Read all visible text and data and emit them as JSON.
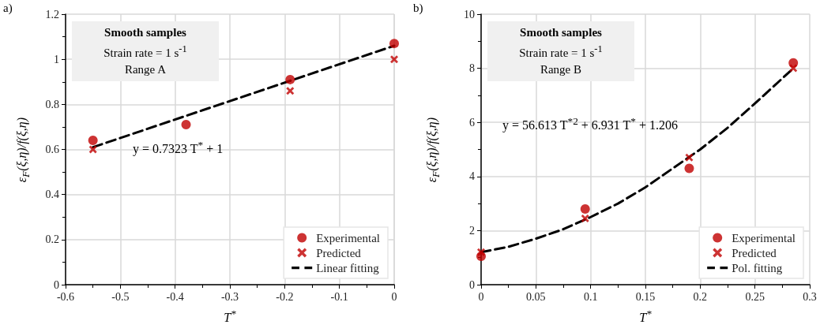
{
  "chart_data": [
    {
      "type": "scatter",
      "title": "a)",
      "xlabel": "T$^{*}$",
      "ylabel": "ε$_{F}$(ξ,η)/f(ξ,η)",
      "annotations": [
        "Smooth samples",
        "Strain rate = 1 s$^{-1}$",
        "Range A",
        "y = 0.7323 T$^{*}$ + 1"
      ],
      "x": [
        -0.55,
        -0.38,
        -0.19,
        0
      ],
      "series": [
        {
          "name": "Experimental",
          "color": "#c00000",
          "marker": "circle",
          "values": [
            0.64,
            0.71,
            0.91,
            1.07
          ]
        },
        {
          "name": "Predicted",
          "color": "#c00000",
          "marker": "cross",
          "values": [
            0.6,
            null,
            0.86,
            1.0
          ]
        },
        {
          "name": "Linear fitting",
          "type": "line",
          "color": "#000000",
          "marker": "none",
          "line_style": "dashed",
          "x": [
            -0.55,
            0
          ],
          "values": [
            0.61,
            1.06
          ]
        }
      ],
      "xlim": [
        -0.6,
        0
      ],
      "xticks": [
        -0.6,
        -0.5,
        -0.4,
        -0.3,
        -0.2,
        -0.1,
        0
      ],
      "ylim": [
        0,
        1.2
      ],
      "yticks": [
        0,
        0.2,
        0.4,
        0.6,
        0.8,
        1,
        1.2
      ],
      "grid": true,
      "legend": "bottom right"
    },
    {
      "type": "scatter",
      "title": "b)",
      "xlabel": "T$^{*}$",
      "ylabel": "ε$_{F}$(ξ,η)/f(ξ,η)",
      "annotations": [
        "Smooth samples",
        "Strain rate = 1 s$^{-1}$",
        "Range B",
        "y = 56.613 T$^{*2}$ + 6.931 T$^{*}$ + 1.206"
      ],
      "x": [
        0,
        0.095,
        0.19,
        0.285
      ],
      "series": [
        {
          "name": "Experimental",
          "color": "#c00000",
          "marker": "circle",
          "values": [
            1.05,
            2.8,
            4.3,
            8.2
          ]
        },
        {
          "name": "Predicted",
          "color": "#c00000",
          "marker": "cross",
          "values": [
            1.2,
            2.45,
            4.7,
            8.0
          ]
        },
        {
          "name": "Pol. fitting",
          "type": "line",
          "color": "#000000",
          "marker": "none",
          "line_style": "dashed",
          "x": [
            0,
            0.025,
            0.05,
            0.075,
            0.1,
            0.125,
            0.15,
            0.175,
            0.2,
            0.225,
            0.25,
            0.285
          ],
          "values": [
            1.2,
            1.4,
            1.7,
            2.05,
            2.5,
            3.0,
            3.6,
            4.3,
            5.0,
            5.8,
            6.7,
            8.0
          ]
        }
      ],
      "xlim": [
        0,
        0.3
      ],
      "xticks": [
        0,
        0.05,
        0.1,
        0.15,
        0.2,
        0.25,
        0.3
      ],
      "ylim": [
        0,
        10
      ],
      "yticks": [
        0,
        2,
        4,
        6,
        8,
        10
      ],
      "grid": true,
      "legend": "bottom right"
    }
  ]
}
